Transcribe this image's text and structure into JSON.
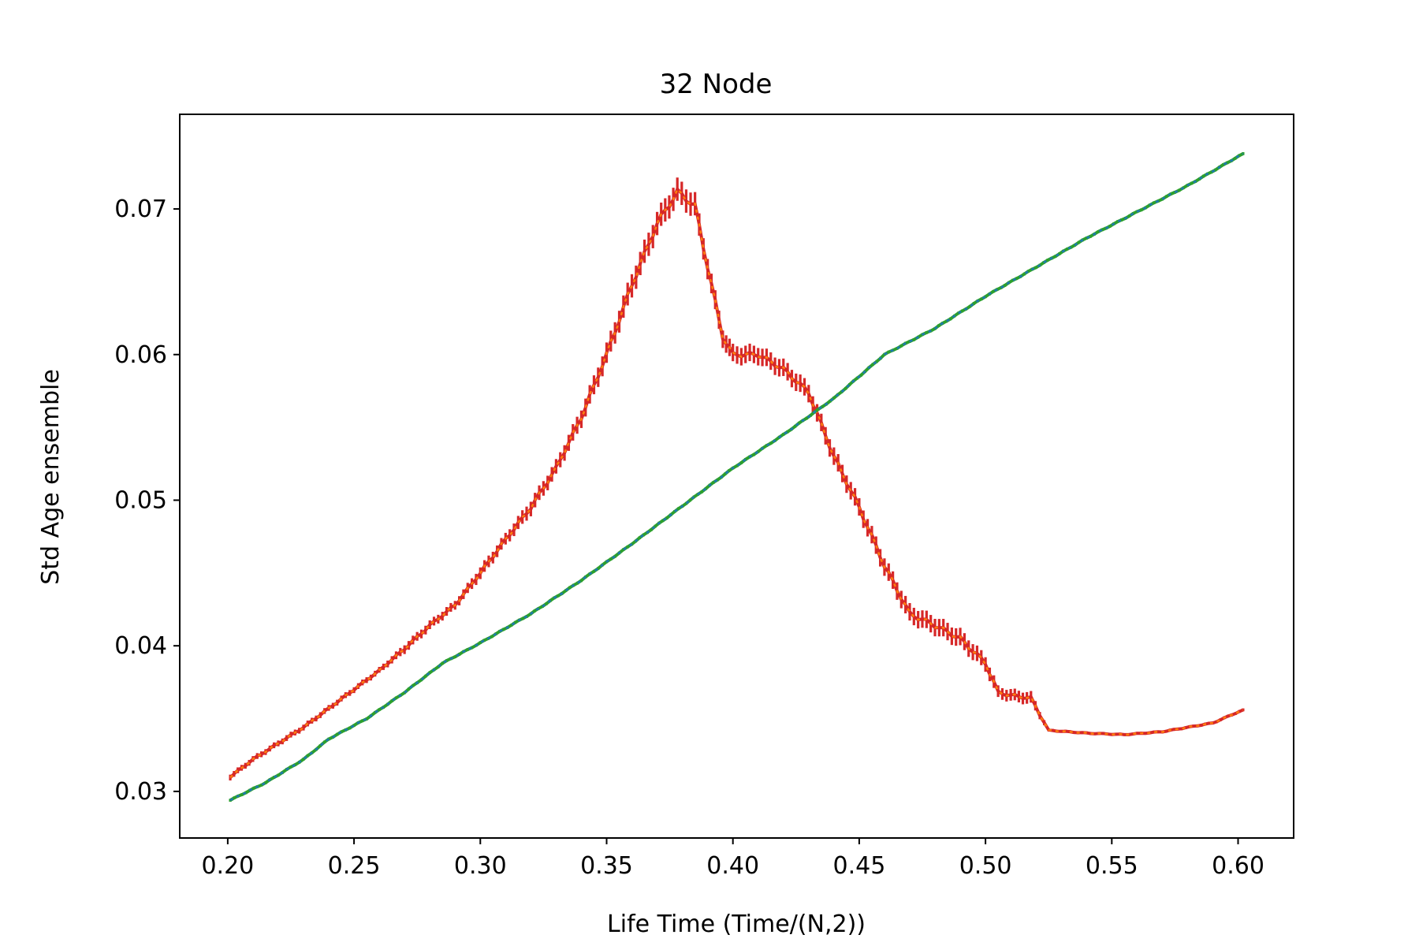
{
  "chart_data": {
    "type": "line",
    "title": "32 Node",
    "xlabel": "Life Time (Time/(N,2))",
    "ylabel": "Std Age ensemble",
    "xlim": [
      0.181,
      0.622
    ],
    "ylim": [
      0.0268,
      0.0765
    ],
    "xticks": [
      0.2,
      0.25,
      0.3,
      0.35,
      0.4,
      0.45,
      0.5,
      0.55,
      0.6
    ],
    "xtick_labels": [
      "0.20",
      "0.25",
      "0.30",
      "0.35",
      "0.40",
      "0.45",
      "0.50",
      "0.55",
      "0.60"
    ],
    "yticks": [
      0.03,
      0.04,
      0.05,
      0.06,
      0.07
    ],
    "ytick_labels": [
      "0.03",
      "0.04",
      "0.05",
      "0.06",
      "0.07"
    ],
    "grid": false,
    "legend": false,
    "series": [
      {
        "color": "#d62728",
        "mean_color": "#ff7f0e",
        "style": "errorbar",
        "points": [
          [
            0.201,
            0.031,
            0.0002
          ],
          [
            0.21,
            0.0322,
            0.0002
          ],
          [
            0.22,
            0.0333,
            0.0002
          ],
          [
            0.23,
            0.0344,
            0.0002
          ],
          [
            0.24,
            0.0357,
            0.0002
          ],
          [
            0.25,
            0.037,
            0.0002
          ],
          [
            0.26,
            0.0383,
            0.0002
          ],
          [
            0.27,
            0.0398,
            0.0003
          ],
          [
            0.28,
            0.0414,
            0.0003
          ],
          [
            0.29,
            0.0428,
            0.0003
          ],
          [
            0.3,
            0.045,
            0.0004
          ],
          [
            0.31,
            0.0473,
            0.0004
          ],
          [
            0.32,
            0.0495,
            0.0005
          ],
          [
            0.33,
            0.0522,
            0.0005
          ],
          [
            0.34,
            0.0557,
            0.0006
          ],
          [
            0.35,
            0.06,
            0.0007
          ],
          [
            0.36,
            0.0648,
            0.0008
          ],
          [
            0.37,
            0.069,
            0.0008
          ],
          [
            0.378,
            0.0712,
            0.0008
          ],
          [
            0.385,
            0.0702,
            0.0008
          ],
          [
            0.39,
            0.066,
            0.0007
          ],
          [
            0.396,
            0.0612,
            0.0006
          ],
          [
            0.4,
            0.06,
            0.0006
          ],
          [
            0.41,
            0.06,
            0.0006
          ],
          [
            0.42,
            0.059,
            0.0006
          ],
          [
            0.43,
            0.0574,
            0.0006
          ],
          [
            0.44,
            0.053,
            0.0006
          ],
          [
            0.45,
            0.0495,
            0.0006
          ],
          [
            0.46,
            0.0455,
            0.0006
          ],
          [
            0.47,
            0.0422,
            0.0006
          ],
          [
            0.48,
            0.0414,
            0.0006
          ],
          [
            0.49,
            0.0405,
            0.0006
          ],
          [
            0.5,
            0.0388,
            0.0005
          ],
          [
            0.505,
            0.0368,
            0.0004
          ],
          [
            0.51,
            0.0366,
            0.0004
          ],
          [
            0.518,
            0.0364,
            0.0004
          ],
          [
            0.525,
            0.0342,
            0.0001
          ],
          [
            0.54,
            0.034,
            0.0001
          ],
          [
            0.555,
            0.0339,
            0.0001
          ],
          [
            0.57,
            0.0341,
            0.0001
          ],
          [
            0.59,
            0.0347,
            0.0001
          ],
          [
            0.602,
            0.0356,
            0.0001
          ]
        ]
      },
      {
        "color": "#2ca02c",
        "mean_color": "#1f77b4",
        "style": "errorbar",
        "points": [
          [
            0.201,
            0.0294,
            0.0001
          ],
          [
            0.215,
            0.0306,
            0.0001
          ],
          [
            0.23,
            0.0322,
            0.0001
          ],
          [
            0.24,
            0.0336,
            0.0001
          ],
          [
            0.255,
            0.035,
            0.0001
          ],
          [
            0.27,
            0.0368,
            0.0001
          ],
          [
            0.285,
            0.0388,
            0.0001
          ],
          [
            0.3,
            0.0402,
            0.0001
          ],
          [
            0.32,
            0.0422,
            0.0001
          ],
          [
            0.34,
            0.0445,
            0.0001
          ],
          [
            0.36,
            0.047,
            0.0001
          ],
          [
            0.38,
            0.0496,
            0.0001
          ],
          [
            0.4,
            0.0522,
            0.0001
          ],
          [
            0.42,
            0.0545,
            0.0001
          ],
          [
            0.44,
            0.057,
            0.0001
          ],
          [
            0.46,
            0.06,
            0.0001
          ],
          [
            0.48,
            0.0618,
            0.0001
          ],
          [
            0.5,
            0.064,
            0.0001
          ],
          [
            0.52,
            0.066,
            0.0001
          ],
          [
            0.54,
            0.068,
            0.0001
          ],
          [
            0.56,
            0.0698,
            0.0001
          ],
          [
            0.58,
            0.0716,
            0.0001
          ],
          [
            0.602,
            0.0738,
            0.0001
          ]
        ]
      }
    ]
  }
}
